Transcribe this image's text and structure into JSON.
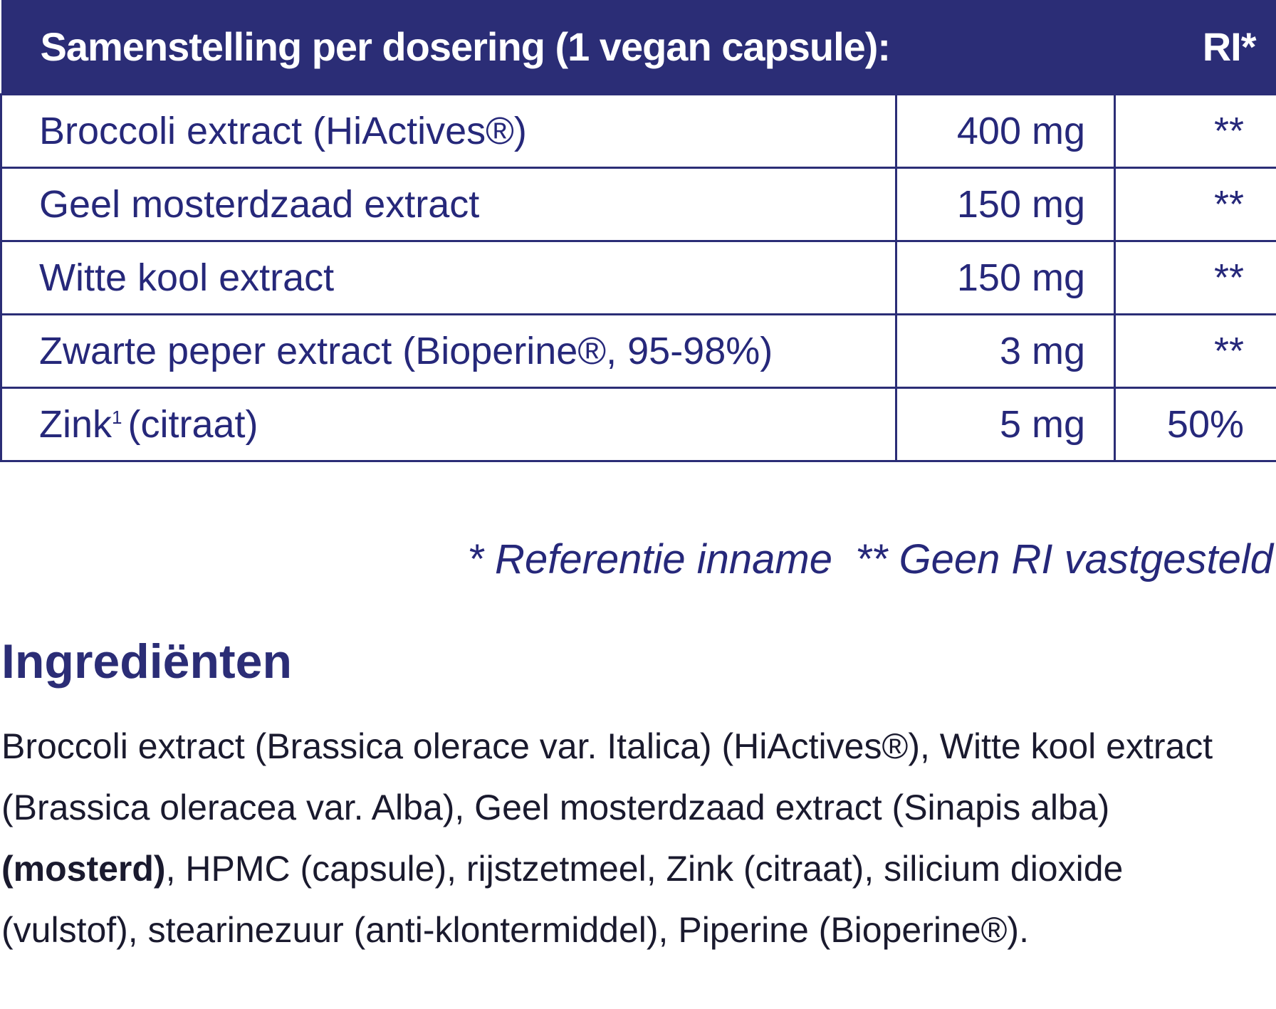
{
  "table": {
    "header": [
      "Samenstelling per dosering (1 vegan capsule):",
      "RI*"
    ],
    "rows": [
      {
        "name": "Broccoli extract (HiActives®)",
        "amount": "400 mg",
        "ri": "**"
      },
      {
        "name": "Geel mosterdzaad extract",
        "amount": "150 mg",
        "ri": "**"
      },
      {
        "name": "Witte kool extract",
        "amount": "150 mg",
        "ri": "**"
      },
      {
        "name": "Zwarte peper extract (Bioperine®, 95-98%)",
        "amount": "3 mg",
        "ri": "**"
      },
      {
        "name": "Zink",
        "sup": "1",
        "name_rest": "(citraat)",
        "amount": "5 mg",
        "ri": "50%"
      }
    ]
  },
  "footnote": "* Referentie inname  ** Geen RI vastgesteld",
  "ingredients": {
    "title": "Ingrediënten",
    "text_before": "Broccoli extract (Brassica olerace var. Italica) (HiActives®), Witte kool extract (Brassica oleracea var. Alba), Geel mosterdzaad extract (Sinapis alba) ",
    "text_bold": "(mosterd)",
    "text_after": ", HPMC (capsule), rijstzetmeel, Zink (citraat), silicium dioxide (vulstof), stearinezuur (anti-klontermiddel), Piperine (Bioperine®)."
  }
}
